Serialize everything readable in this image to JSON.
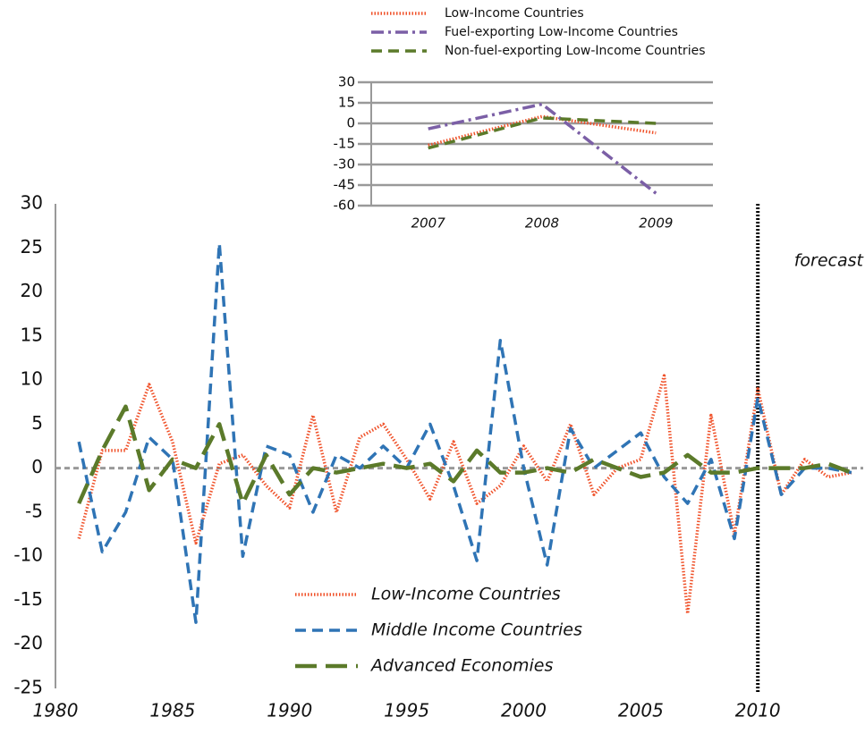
{
  "chart_data": [
    {
      "type": "line",
      "x": [
        1981,
        1982,
        1983,
        1984,
        1985,
        1986,
        1987,
        1988,
        1989,
        1990,
        1991,
        1992,
        1993,
        1994,
        1995,
        1996,
        1997,
        1998,
        1999,
        2000,
        2001,
        2002,
        2003,
        2004,
        2005,
        2006,
        2007,
        2008,
        2009,
        2010,
        2011,
        2012,
        2013,
        2014
      ],
      "series": [
        {
          "name": "Low-Income Countries",
          "color": "#f0522a",
          "style": "dotted",
          "values": [
            -8,
            2,
            2,
            9.5,
            3,
            -8.5,
            0.5,
            1.5,
            -2,
            -4.5,
            6,
            -5,
            3.5,
            5,
            1,
            -3.5,
            3,
            -4,
            -2,
            2.5,
            -1.5,
            5,
            -3,
            0,
            1,
            10.5,
            -16.5,
            6,
            -7.5,
            9,
            -3,
            1,
            -1,
            -0.5
          ]
        },
        {
          "name": "Middle Income Countries",
          "color": "#2f74b5",
          "style": "dashed",
          "values": [
            3,
            -9.5,
            -5,
            3.5,
            1,
            -17.5,
            25.5,
            -10,
            2.5,
            1.5,
            -5,
            1.5,
            0,
            2.5,
            0,
            5,
            -2,
            -10.5,
            14.5,
            0,
            -11,
            4.5,
            0,
            2,
            4,
            -1,
            -4,
            1,
            -8,
            8,
            -3,
            0,
            0,
            -0.5
          ]
        },
        {
          "name": "Advanced Economies",
          "color": "#5b7a2a",
          "style": "longdash",
          "values": [
            -4,
            2,
            7,
            -2.5,
            1,
            0,
            5,
            -4,
            1.5,
            -3,
            0,
            -0.5,
            0,
            0.5,
            0,
            0.5,
            -1.5,
            2,
            -0.5,
            -0.5,
            0,
            -0.5,
            1,
            0,
            -1,
            -0.5,
            1.5,
            -0.5,
            -0.5,
            0,
            0,
            0,
            0.5,
            -0.5
          ]
        }
      ],
      "xlim": [
        1980,
        2014.5
      ],
      "xticks": [
        1980,
        1985,
        1990,
        1995,
        2000,
        2005,
        2010
      ],
      "ylim": [
        -25,
        30
      ],
      "yticks": [
        -25,
        -20,
        -15,
        -10,
        -5,
        0,
        5,
        10,
        15,
        20,
        25,
        30
      ],
      "grid": false,
      "legend": "lower center",
      "annotation": {
        "text": "forecast",
        "x": 2010
      }
    },
    {
      "type": "line",
      "categories": [
        "2007",
        "2008",
        "2009"
      ],
      "series": [
        {
          "name": "Low-Income Countries",
          "color": "#f0522a",
          "style": "dotted",
          "values": [
            -16,
            5,
            -7
          ]
        },
        {
          "name": "Fuel-exporting Low-Income Countries",
          "color": "#7b5fa6",
          "style": "dashdot",
          "values": [
            -4,
            14,
            -51
          ]
        },
        {
          "name": "Non-fuel-exporting Low-Income Countries",
          "color": "#5b7a2a",
          "style": "dashed",
          "values": [
            -18,
            4,
            0
          ]
        }
      ],
      "ylim": [
        -60,
        30
      ],
      "yticks": [
        -60,
        -45,
        -30,
        -15,
        0,
        15,
        30
      ],
      "grid": true,
      "legend": "top"
    }
  ]
}
